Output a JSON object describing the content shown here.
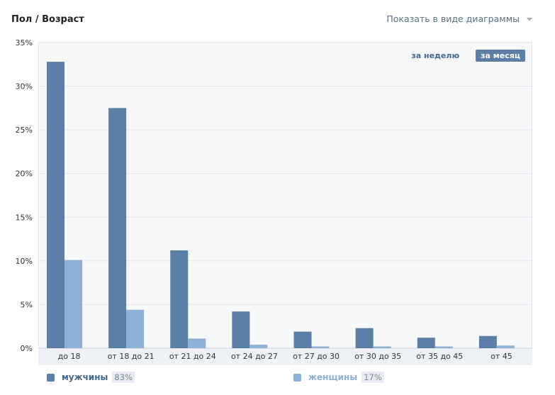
{
  "header": {
    "title": "Пол / Возраст"
  },
  "view_select": {
    "label": "Показать в виде диаграммы"
  },
  "period": {
    "week_label": "за неделю",
    "month_label": "за месяц",
    "active": "month"
  },
  "legend": {
    "male": {
      "label": "мужчины",
      "percent": "83%",
      "color": "#5b7fa6"
    },
    "female": {
      "label": "женщины",
      "percent": "17%",
      "color": "#8eb0d4"
    }
  },
  "chart_data": {
    "type": "bar",
    "title": "",
    "xlabel": "",
    "ylabel": "",
    "categories": [
      "до 18",
      "от 18 до 21",
      "от 21 до 24",
      "от 24 до 27",
      "от 27 до 30",
      "от 30 до 35",
      "от 35 до 45",
      "от 45"
    ],
    "series": [
      {
        "name": "мужчины",
        "values": [
          32.8,
          27.5,
          11.2,
          4.2,
          1.9,
          2.3,
          1.2,
          1.4
        ],
        "color": "#5b7fa6"
      },
      {
        "name": "женщины",
        "values": [
          10.1,
          4.4,
          1.1,
          0.4,
          0.2,
          0.2,
          0.2,
          0.3
        ],
        "color": "#8eb0d4"
      }
    ],
    "ylim": [
      0,
      35
    ],
    "yticks": [
      "0%",
      "5%",
      "10%",
      "15%",
      "20%",
      "25%",
      "30%",
      "35%"
    ],
    "grid": true
  }
}
